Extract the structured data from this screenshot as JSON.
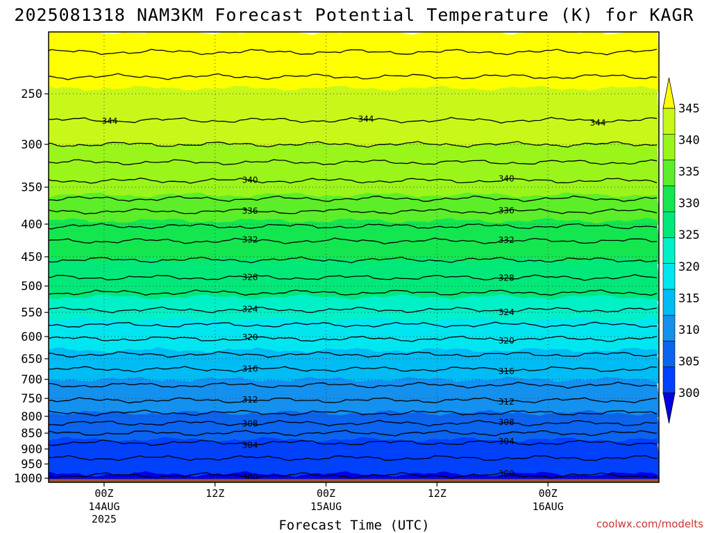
{
  "chart_data": {
    "type": "heatmap",
    "title": "2025081318 NAM3KM Forecast Potential Temperature (K) for KAGR",
    "xlabel": "Forecast Time (UTC)",
    "ylabel": "",
    "y_scale": "log",
    "y_reversed": true,
    "y_range_hPa": [
      1015,
      200
    ],
    "y_ticks": [
      "250",
      "300",
      "350",
      "400",
      "450",
      "500",
      "550",
      "600",
      "650",
      "700",
      "750",
      "800",
      "850",
      "900",
      "950",
      "1000"
    ],
    "x_range": [
      "2025-08-13 18Z",
      "2025-08-16 12Z"
    ],
    "x_ticks": [
      {
        "time": "2025-08-14 00Z",
        "label": "00Z",
        "label2": "14AUG",
        "label3": "2025"
      },
      {
        "time": "2025-08-14 12Z",
        "label": "12Z",
        "label2": "",
        "label3": ""
      },
      {
        "time": "2025-08-15 00Z",
        "label": "00Z",
        "label2": "15AUG",
        "label3": ""
      },
      {
        "time": "2025-08-15 12Z",
        "label": "12Z",
        "label2": "",
        "label3": ""
      },
      {
        "time": "2025-08-16 00Z",
        "label": "00Z",
        "label2": "16AUG",
        "label3": ""
      }
    ],
    "grid": true,
    "colorbar": {
      "levels": [
        300,
        305,
        310,
        315,
        320,
        325,
        330,
        335,
        340,
        345
      ],
      "labels": [
        "300",
        "305",
        "310",
        "315",
        "320",
        "325",
        "330",
        "335",
        "340",
        "345"
      ],
      "colors": [
        "#0000e0",
        "#0040ff",
        "#0a64f0",
        "#1490ee",
        "#00bcf5",
        "#00e6f0",
        "#00f0c8",
        "#00e878",
        "#14e650",
        "#5cee28",
        "#9af51a",
        "#c8f81a",
        "#ffff00"
      ]
    },
    "ground_color": "#a0522d",
    "filled_bands": [
      {
        "color": "#ffff00",
        "top_hPa": 200,
        "bottom_hPa": 245
      },
      {
        "color": "#c8f81a",
        "top_hPa": 245,
        "bottom_hPa": 300
      },
      {
        "color": "#9af51a",
        "top_hPa": 300,
        "bottom_hPa": 360
      },
      {
        "color": "#5cee28",
        "top_hPa": 360,
        "bottom_hPa": 395
      },
      {
        "color": "#14e650",
        "top_hPa": 395,
        "bottom_hPa": 455
      },
      {
        "color": "#00e878",
        "top_hPa": 455,
        "bottom_hPa": 520
      },
      {
        "color": "#00f0c8",
        "top_hPa": 520,
        "bottom_hPa": 565
      },
      {
        "color": "#00e6f0",
        "top_hPa": 565,
        "bottom_hPa": 630
      },
      {
        "color": "#00bcf5",
        "top_hPa": 630,
        "bottom_hPa": 700
      },
      {
        "color": "#1490ee",
        "top_hPa": 700,
        "bottom_hPa": 790
      },
      {
        "color": "#0a64f0",
        "top_hPa": 790,
        "bottom_hPa": 870
      },
      {
        "color": "#0040ff",
        "top_hPa": 870,
        "bottom_hPa": 985
      },
      {
        "color": "#0000e0",
        "top_hPa": 985,
        "bottom_hPa": 1003
      }
    ],
    "contours": [
      {
        "theta": 348,
        "pressure_hPa": 215
      },
      {
        "theta": 346,
        "pressure_hPa": 235
      },
      {
        "theta": 344,
        "pressure_hPa": 275,
        "label": "344"
      },
      {
        "theta": 343,
        "pressure_hPa": 300
      },
      {
        "theta": 342,
        "pressure_hPa": 320
      },
      {
        "theta": 340,
        "pressure_hPa": 342,
        "label": "340"
      },
      {
        "theta": 338,
        "pressure_hPa": 365
      },
      {
        "theta": 336,
        "pressure_hPa": 382,
        "label": "336"
      },
      {
        "theta": 334,
        "pressure_hPa": 403
      },
      {
        "theta": 332,
        "pressure_hPa": 425,
        "label": "332"
      },
      {
        "theta": 330,
        "pressure_hPa": 455
      },
      {
        "theta": 328,
        "pressure_hPa": 485,
        "label": "328"
      },
      {
        "theta": 326,
        "pressure_hPa": 512
      },
      {
        "theta": 324,
        "pressure_hPa": 545,
        "label": "324"
      },
      {
        "theta": 322,
        "pressure_hPa": 575
      },
      {
        "theta": 320,
        "pressure_hPa": 605,
        "label": "320"
      },
      {
        "theta": 318,
        "pressure_hPa": 640
      },
      {
        "theta": 316,
        "pressure_hPa": 675,
        "label": "316"
      },
      {
        "theta": 314,
        "pressure_hPa": 715
      },
      {
        "theta": 312,
        "pressure_hPa": 755,
        "label": "312"
      },
      {
        "theta": 310,
        "pressure_hPa": 790
      },
      {
        "theta": 308,
        "pressure_hPa": 820,
        "label": "308"
      },
      {
        "theta": 306,
        "pressure_hPa": 850
      },
      {
        "theta": 304,
        "pressure_hPa": 880,
        "label": "304"
      },
      {
        "theta": 302,
        "pressure_hPa": 930
      },
      {
        "theta": 300,
        "pressure_hPa": 990,
        "label": "300"
      }
    ],
    "footer": "coolwx.com/modelts"
  }
}
